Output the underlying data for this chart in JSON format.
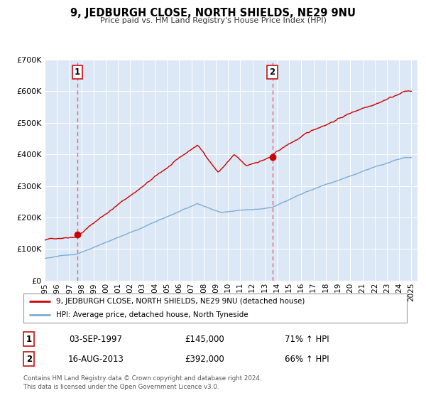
{
  "title": "9, JEDBURGH CLOSE, NORTH SHIELDS, NE29 9NU",
  "subtitle": "Price paid vs. HM Land Registry's House Price Index (HPI)",
  "bg_color": "#dce8f5",
  "red_line_color": "#cc0000",
  "blue_line_color": "#7dadd4",
  "sale1_date_num": 1997.67,
  "sale1_price": 145000,
  "sale1_label": "1",
  "sale2_date_num": 2013.62,
  "sale2_price": 392000,
  "sale2_label": "2",
  "xmin": 1995.0,
  "xmax": 2025.5,
  "ymin": 0,
  "ymax": 700000,
  "yticks": [
    0,
    100000,
    200000,
    300000,
    400000,
    500000,
    600000,
    700000
  ],
  "ytick_labels": [
    "£0",
    "£100K",
    "£200K",
    "£300K",
    "£400K",
    "£500K",
    "£600K",
    "£700K"
  ],
  "legend_label_red": "9, JEDBURGH CLOSE, NORTH SHIELDS, NE29 9NU (detached house)",
  "legend_label_blue": "HPI: Average price, detached house, North Tyneside",
  "annotation1_date": "03-SEP-1997",
  "annotation1_price": "£145,000",
  "annotation1_hpi": "71% ↑ HPI",
  "annotation2_date": "16-AUG-2013",
  "annotation2_price": "£392,000",
  "annotation2_hpi": "66% ↑ HPI",
  "footer": "Contains HM Land Registry data © Crown copyright and database right 2024.\nThis data is licensed under the Open Government Licence v3.0.",
  "xticks": [
    1995,
    1996,
    1997,
    1998,
    1999,
    2000,
    2001,
    2002,
    2003,
    2004,
    2005,
    2006,
    2007,
    2008,
    2009,
    2010,
    2011,
    2012,
    2013,
    2014,
    2015,
    2016,
    2017,
    2018,
    2019,
    2020,
    2021,
    2022,
    2023,
    2024,
    2025
  ]
}
